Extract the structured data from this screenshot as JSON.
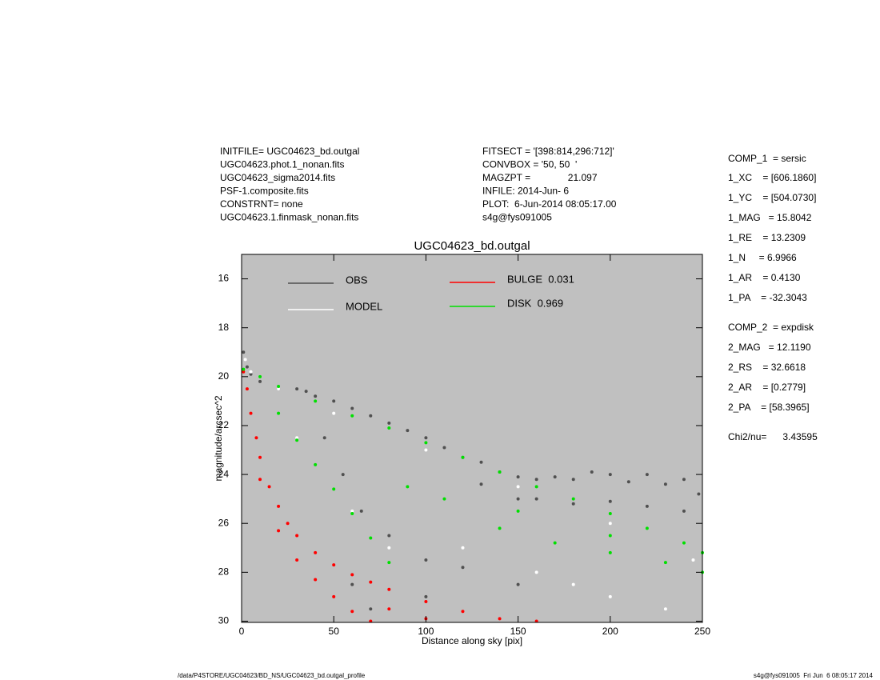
{
  "header": {
    "left": [
      "INITFILE= UGC04623_bd.outgal",
      "UGC04623.phot.1_nonan.fits",
      "UGC04623_sigma2014.fits",
      "PSF-1.composite.fits",
      "CONSTRNT= none",
      "UGC04623.1.finmask_nonan.fits"
    ],
    "middle": [
      "FITSECT = '[398:814,296:712]'",
      "CONVBOX = '50, 50  '",
      "MAGZPT =              21.097",
      "INFILE: 2014-Jun- 6",
      "PLOT:  6-Jun-2014 08:05:17.00",
      "s4g@fys091005"
    ],
    "right": [
      "COMP_1  = sersic",
      "1_XC    = [606.1860]",
      "1_YC    = [504.0730]",
      "1_MAG   = 15.8042",
      "1_RE    = 13.2309",
      "1_N     = 6.9966",
      "1_AR    = 0.4130",
      "1_PA    = -32.3043",
      "COMP_2  = expdisk",
      "2_MAG   = 12.1190",
      "2_RS    = 32.6618",
      "2_AR    = [0.2779]",
      "2_PA    = [58.3965]",
      "Chi2/nu=      3.43595"
    ]
  },
  "footer": {
    "left": "/data/P4STORE/UGC04623/BD_NS/UGC04623_bd.outgal_profile",
    "right": "s4g@fys091005  Fri Jun  6 08:05:17 2014"
  },
  "chart_data": {
    "type": "scatter",
    "title": "UGC04623_bd.outgal",
    "x_label": "Distance along sky [pix]",
    "y_label": "magnitude/arcsec^2",
    "xlim": [
      0,
      250
    ],
    "xticks": [
      0,
      50,
      100,
      150,
      200,
      250
    ],
    "ylim": [
      30.05,
      15
    ],
    "yticks": [
      16,
      18,
      20,
      22,
      24,
      26,
      28,
      30
    ],
    "background": "#c0c0c0",
    "series": [
      {
        "name": "OBS",
        "color": "#505050",
        "x": [
          1,
          3,
          5,
          10,
          20,
          30,
          35,
          40,
          50,
          60,
          70,
          80,
          90,
          100,
          110,
          120,
          130,
          140,
          150,
          160,
          170,
          180,
          190,
          200,
          210,
          220,
          230,
          240,
          248,
          160,
          180,
          200,
          220,
          240,
          130,
          150,
          45,
          55,
          65,
          80,
          100,
          120,
          150,
          70,
          60,
          100
        ],
        "values": [
          19.0,
          19.6,
          19.9,
          20.2,
          20.5,
          20.5,
          20.6,
          20.8,
          21.0,
          21.3,
          21.6,
          21.9,
          22.2,
          22.5,
          22.9,
          23.3,
          23.5,
          23.9,
          24.1,
          24.2,
          24.1,
          24.2,
          23.9,
          24.0,
          24.3,
          24.0,
          24.4,
          24.2,
          24.8,
          25.0,
          25.2,
          25.1,
          25.3,
          25.5,
          24.4,
          25.0,
          22.5,
          24.0,
          25.5,
          26.5,
          27.5,
          27.8,
          28.5,
          29.5,
          28.5,
          29.0
        ]
      },
      {
        "name": "MODEL",
        "color": "#ffffff",
        "x": [
          2,
          5,
          20,
          50,
          100,
          150,
          200,
          245,
          30,
          60,
          80,
          120,
          180,
          230,
          200,
          160
        ],
        "values": [
          19.3,
          19.8,
          20.5,
          21.5,
          23.0,
          24.5,
          26.0,
          27.5,
          22.5,
          25.5,
          27.0,
          27.0,
          28.5,
          29.5,
          29.0,
          28.0
        ]
      },
      {
        "name": "BULGE  0.031",
        "color": "#ff0000",
        "x": [
          1,
          3,
          5,
          8,
          10,
          15,
          20,
          25,
          30,
          40,
          50,
          60,
          70,
          80,
          100,
          120,
          140,
          160,
          10,
          20,
          30,
          40,
          50,
          60,
          70,
          80,
          100
        ],
        "values": [
          19.8,
          20.5,
          21.5,
          22.5,
          23.3,
          24.5,
          25.3,
          26.0,
          26.5,
          27.2,
          27.7,
          28.1,
          28.4,
          28.7,
          29.2,
          29.6,
          29.9,
          30.0,
          24.2,
          26.3,
          27.5,
          28.3,
          29.0,
          29.6,
          30.0,
          29.5,
          29.9
        ]
      },
      {
        "name": "DISK  0.969",
        "color": "#00e000",
        "x": [
          1,
          10,
          20,
          40,
          60,
          80,
          100,
          120,
          140,
          160,
          180,
          200,
          220,
          240,
          250,
          20,
          30,
          40,
          50,
          60,
          70,
          80,
          250,
          230,
          200,
          170,
          140,
          110,
          90,
          150,
          200
        ],
        "values": [
          19.7,
          20.0,
          20.4,
          21.0,
          21.6,
          22.1,
          22.7,
          23.3,
          23.9,
          24.5,
          25.0,
          25.6,
          26.2,
          26.8,
          27.2,
          21.5,
          22.6,
          23.6,
          24.6,
          25.6,
          26.6,
          27.6,
          28.0,
          27.6,
          27.2,
          26.8,
          26.2,
          25.0,
          24.5,
          25.5,
          26.5
        ]
      }
    ]
  }
}
